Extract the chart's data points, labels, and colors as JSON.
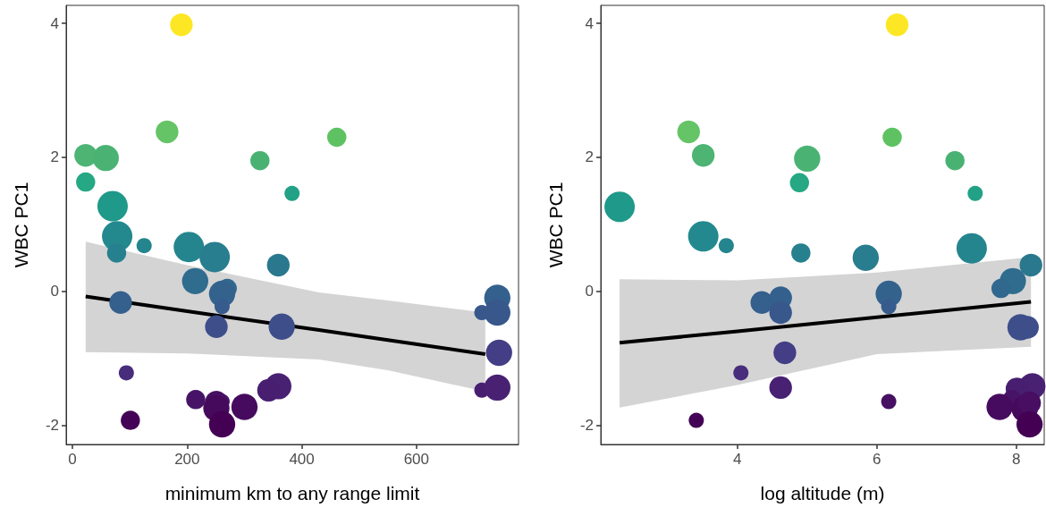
{
  "chart_data": [
    {
      "type": "bubble",
      "xlabel": "minimum km to any range limit",
      "ylabel": "WBC PC1",
      "xlim": [
        -11,
        778
      ],
      "xticks": [
        0,
        200,
        400,
        600
      ],
      "ylim": [
        -2.29,
        4.27
      ],
      "yticks": [
        -2,
        0,
        2,
        4
      ],
      "grid": false,
      "series": [
        {
          "type": "line",
          "color": "#000000",
          "x": [
            23,
            200,
            430,
            550,
            720
          ],
          "values": [
            -0.08,
            -0.3,
            -0.58,
            -0.73,
            -0.94
          ],
          "lower": [
            -0.91,
            -0.93,
            -1.02,
            -1.18,
            -1.5
          ],
          "upper": [
            0.74,
            0.39,
            -0.02,
            -0.14,
            -0.32
          ]
        },
        {
          "x": [
            190,
            165,
            23,
            58,
            327,
            461,
            23,
            383,
            70,
            78,
            77,
            125,
            203,
            248,
            359,
            214,
            270,
            261,
            261,
            84,
            251,
            365,
            741,
            714,
            741,
            744,
            714,
            741,
            94,
            359,
            342,
            215,
            251,
            261,
            251,
            300,
            261,
            101
          ],
          "values": [
            3.98,
            2.38,
            2.03,
            1.99,
            1.95,
            2.3,
            1.63,
            1.46,
            1.27,
            0.82,
            0.57,
            0.68,
            0.66,
            0.51,
            0.39,
            0.15,
            0.04,
            -0.04,
            -0.23,
            -0.17,
            -0.53,
            -0.53,
            -0.1,
            -0.32,
            -0.32,
            -0.92,
            -1.48,
            -1.44,
            -1.22,
            -1.42,
            -1.48,
            -1.62,
            -1.66,
            -1.65,
            -1.75,
            -1.73,
            -1.99,
            -1.93
          ],
          "sizes": [
            0.56,
            0.56,
            0.56,
            0.75,
            0.4,
            0.4,
            0.4,
            0.25,
            1,
            1,
            0.4,
            0.25,
            1,
            1,
            0.56,
            0.75,
            0.4,
            0.75,
            0.25,
            0.56,
            0.56,
            0.75,
            0.75,
            0.25,
            0.75,
            0.75,
            0.25,
            0.75,
            0.25,
            0.75,
            0.56,
            0.4,
            0.56,
            0.25,
            0.75,
            0.75,
            0.75,
            0.4
          ],
          "colors": [
            "#fde725",
            "#65c466",
            "#4db474",
            "#4ab374",
            "#49b273",
            "#5ec263",
            "#25a883",
            "#22a186",
            "#1f998a",
            "#23898e",
            "#27808e",
            "#25858e",
            "#25858e",
            "#287d8e",
            "#2a788e",
            "#2f6c8e",
            "#31688e",
            "#33638d",
            "#375b8d",
            "#355f8d",
            "#3d4e8a",
            "#3d4e8a",
            "#34608d",
            "#38588c",
            "#38588c",
            "#433e85",
            "#481f70",
            "#482173",
            "#472d7b",
            "#482173",
            "#481f70",
            "#471366",
            "#471063",
            "#471063",
            "#460a5d",
            "#460b5e",
            "#440154",
            "#440256"
          ]
        }
      ]
    },
    {
      "type": "bubble",
      "xlabel": "log altitude (m)",
      "ylabel": "WBC PC1",
      "xlim": [
        2.04,
        8.4
      ],
      "xticks": [
        4,
        6,
        8
      ],
      "ylim": [
        -2.29,
        4.27
      ],
      "yticks": [
        -2,
        0,
        2,
        4
      ],
      "grid": false,
      "series": [
        {
          "type": "line",
          "color": "#000000",
          "x": [
            2.31,
            4,
            6,
            8.21
          ],
          "values": [
            -0.77,
            -0.6,
            -0.39,
            -0.16
          ],
          "lower": [
            -1.74,
            -1.4,
            -0.94,
            -0.83
          ],
          "upper": [
            0.18,
            0.16,
            0.28,
            0.51
          ]
        },
        {
          "x": [
            3.3,
            3.51,
            5.0,
            4.89,
            2.31,
            3.51,
            3.84,
            4.91,
            4.35,
            4.62,
            4.62,
            4.68,
            4.05,
            4.62,
            3.41,
            6.29,
            6.22,
            7.12,
            7.41,
            5.84,
            7.36,
            8.21,
            7.95,
            7.78,
            6.17,
            6.17,
            8.06,
            8.16,
            6.17,
            8.23,
            8.01,
            7.94,
            7.76,
            8.12,
            8.19,
            8.19
          ],
          "values": [
            2.38,
            2.03,
            1.98,
            1.62,
            1.26,
            0.82,
            0.68,
            0.57,
            -0.17,
            -0.1,
            -0.32,
            -0.92,
            -1.22,
            -1.44,
            -1.93,
            3.98,
            2.3,
            1.95,
            1.46,
            0.5,
            0.64,
            0.39,
            0.15,
            0.04,
            -0.04,
            -0.23,
            -0.54,
            -0.54,
            -1.65,
            -1.42,
            -1.46,
            -1.62,
            -1.73,
            -1.76,
            -1.67,
            -1.99
          ],
          "sizes": [
            0.56,
            0.56,
            0.75,
            0.4,
            1,
            1,
            0.25,
            0.4,
            0.56,
            0.56,
            0.56,
            0.56,
            0.25,
            0.56,
            0.25,
            0.56,
            0.4,
            0.4,
            0.25,
            0.75,
            1,
            0.56,
            0.75,
            0.4,
            0.75,
            0.25,
            0.75,
            0.56,
            0.25,
            0.75,
            0.56,
            0.4,
            0.75,
            0.75,
            0.56,
            0.75
          ],
          "colors": [
            "#65c466",
            "#4db474",
            "#4ab374",
            "#25a883",
            "#1f998a",
            "#23898e",
            "#25858e",
            "#27808e",
            "#355f8d",
            "#34608d",
            "#38588c",
            "#433e85",
            "#472d7b",
            "#482173",
            "#440256",
            "#fde725",
            "#5ec263",
            "#49b273",
            "#22a186",
            "#287d8e",
            "#25858e",
            "#2a788e",
            "#2f6c8e",
            "#31688e",
            "#33638d",
            "#375b8d",
            "#3d4e8a",
            "#3d4e8a",
            "#471063",
            "#482173",
            "#481f70",
            "#471366",
            "#460b5e",
            "#460a5d",
            "#470e61",
            "#440154"
          ]
        }
      ]
    }
  ]
}
